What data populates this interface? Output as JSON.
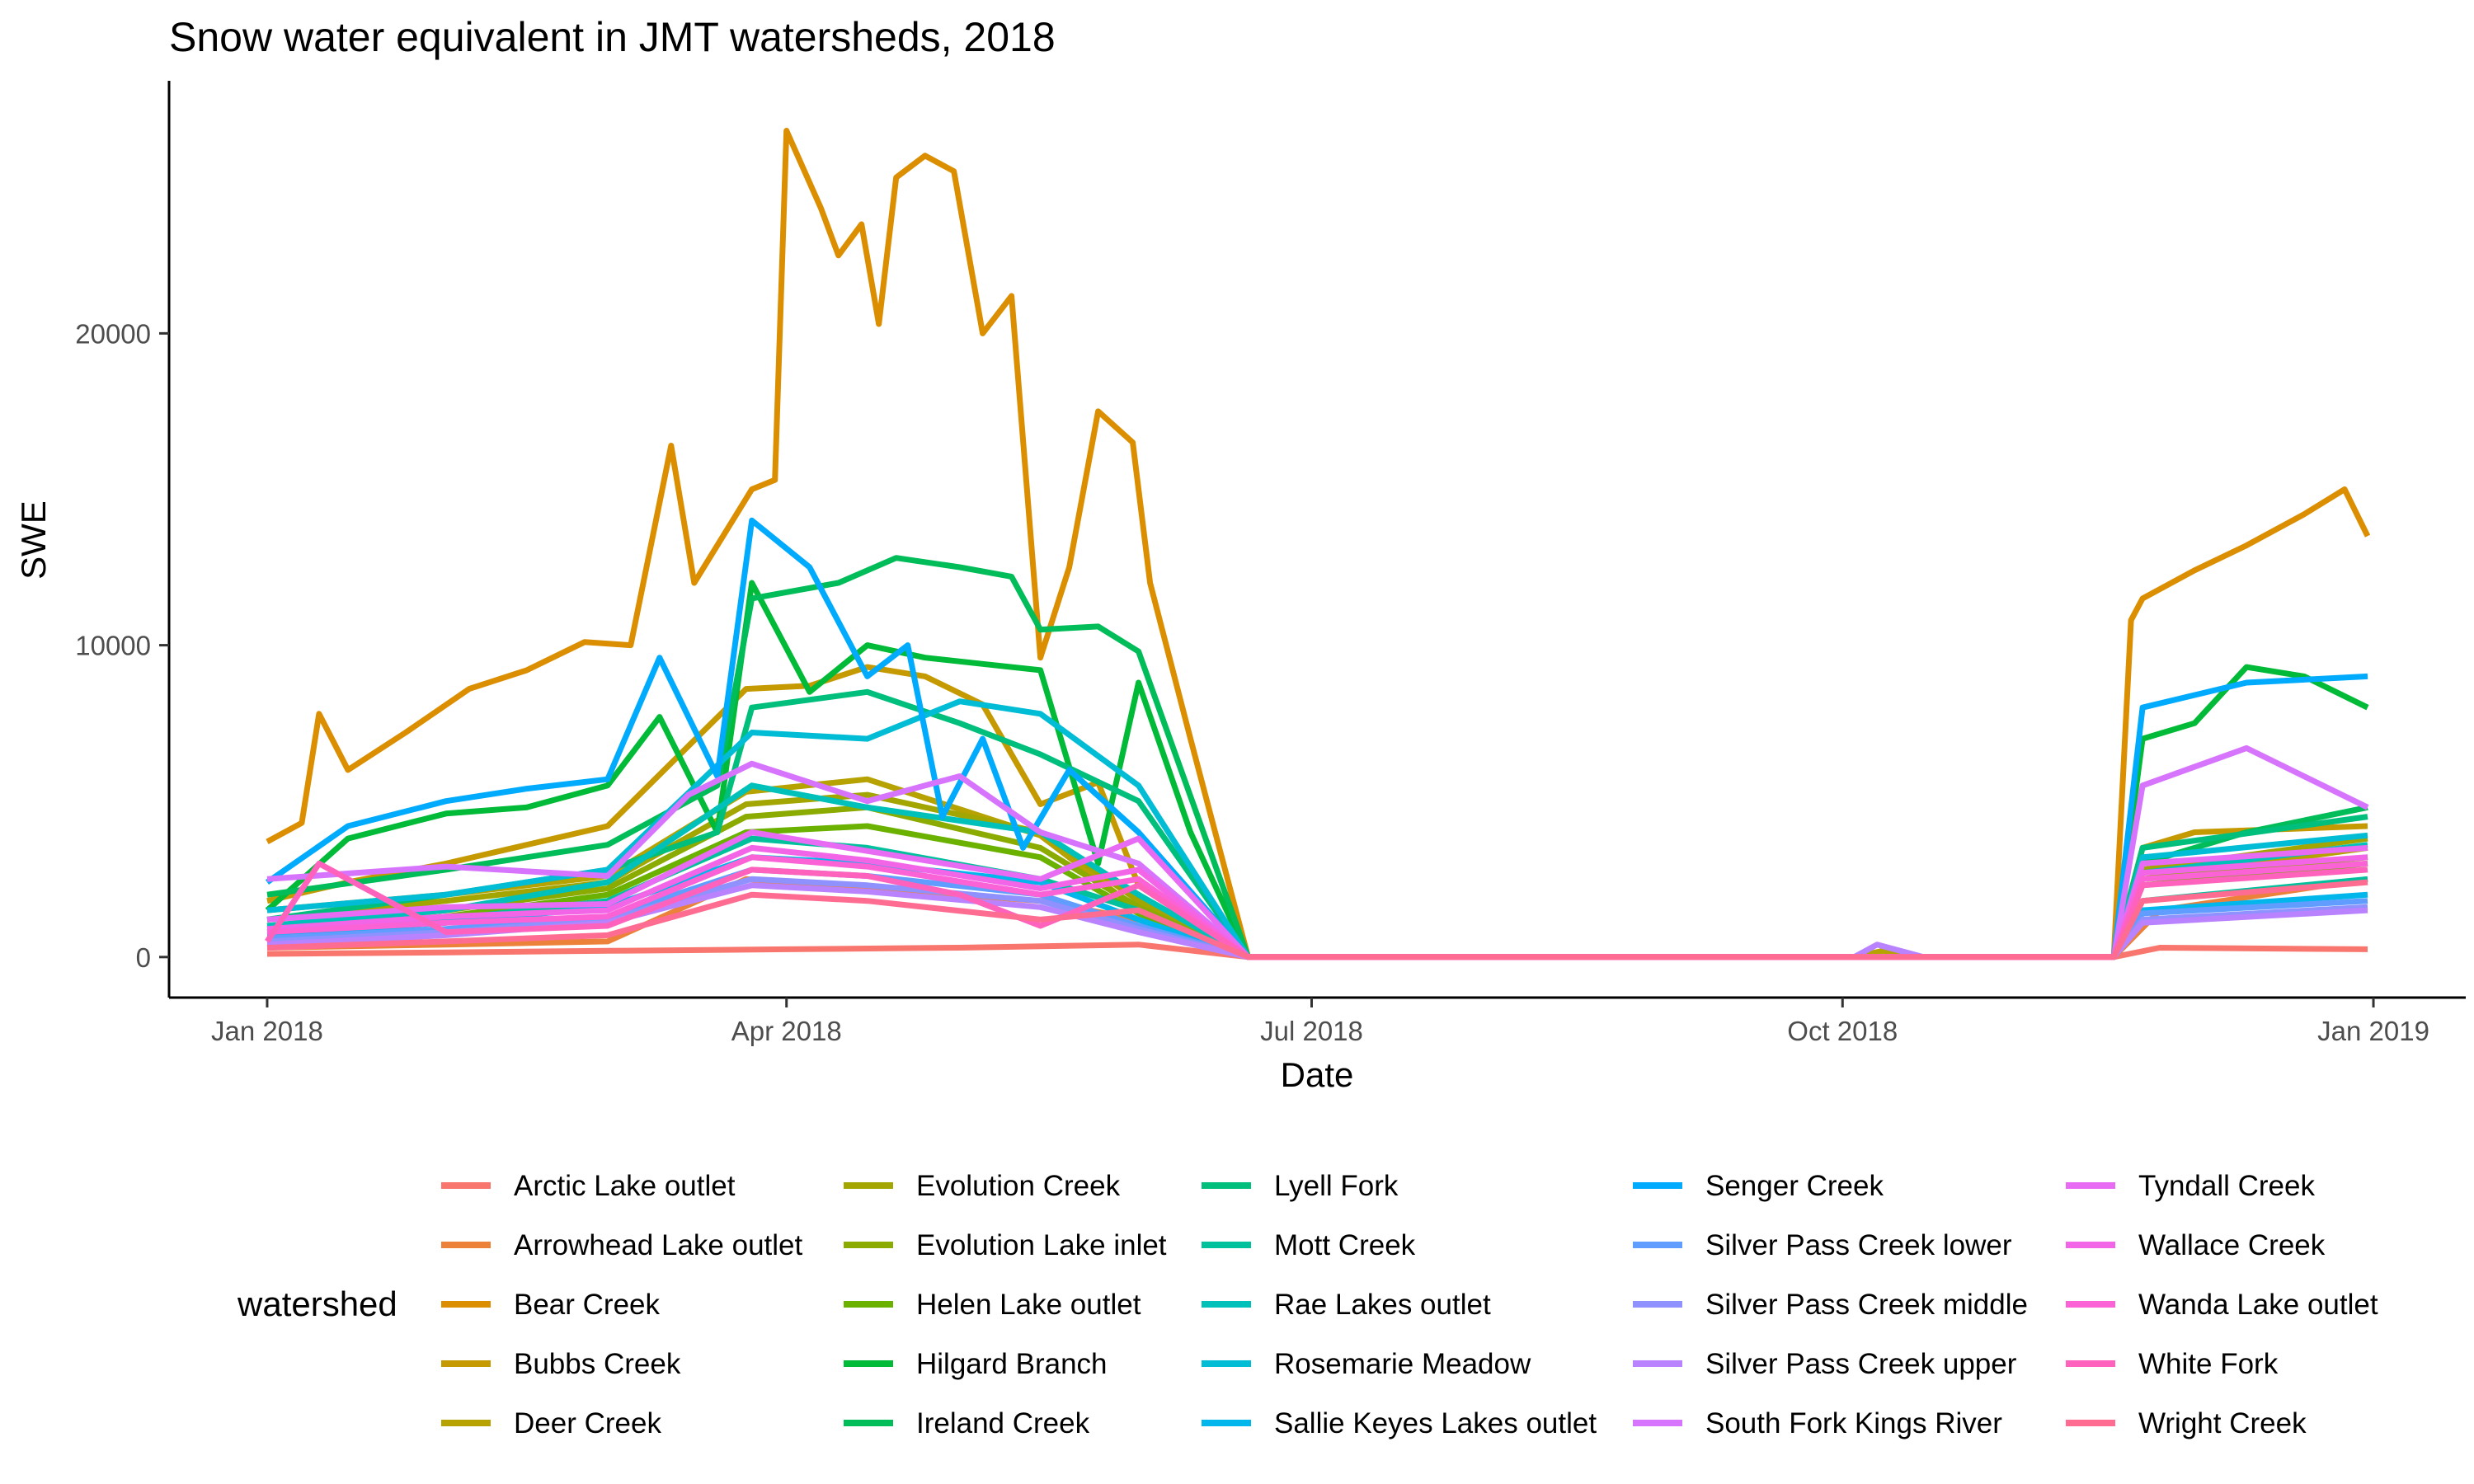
{
  "chart_data": {
    "type": "line",
    "title": "Snow water equivalent in JMT watersheds, 2018",
    "xlabel": "Date",
    "ylabel": "SWE",
    "xlim": [
      "2017-12-15",
      "2019-01-17"
    ],
    "ylim": [
      -1300,
      28100
    ],
    "x_ticks": [
      {
        "date": "2018-01-01",
        "label": "Jan 2018"
      },
      {
        "date": "2018-04-01",
        "label": "Apr 2018"
      },
      {
        "date": "2018-07-01",
        "label": "Jul 2018"
      },
      {
        "date": "2018-10-01",
        "label": "Oct 2018"
      },
      {
        "date": "2019-01-01",
        "label": "Jan 2019"
      }
    ],
    "y_ticks": [
      {
        "value": 0,
        "label": "0"
      },
      {
        "value": 10000,
        "label": "10000"
      },
      {
        "value": 20000,
        "label": "20000"
      }
    ],
    "grid": false,
    "legend": {
      "title": "watershed",
      "position": "bottom",
      "columns": 5
    },
    "series": [
      {
        "name": "Arctic Lake outlet",
        "color": "#F8766D",
        "x": [
          "2018-01-01",
          "2018-02-01",
          "2018-03-01",
          "2018-04-01",
          "2018-05-01",
          "2018-06-01",
          "2018-06-20",
          "2018-11-17",
          "2018-11-25",
          "2018-12-31"
        ],
        "values": [
          100,
          150,
          200,
          250,
          300,
          400,
          0,
          0,
          300,
          250
        ]
      },
      {
        "name": "Arrowhead Lake outlet",
        "color": "#EC8239",
        "x": [
          "2018-01-01",
          "2018-02-01",
          "2018-03-01",
          "2018-03-25",
          "2018-04-15",
          "2018-05-15",
          "2018-06-01",
          "2018-06-20",
          "2018-11-17",
          "2018-11-25",
          "2018-12-31"
        ],
        "values": [
          300,
          400,
          500,
          2500,
          2200,
          1800,
          1200,
          0,
          0,
          1500,
          2500
        ]
      },
      {
        "name": "Bear Creek",
        "color": "#DB8E00",
        "x": [
          "2018-01-01",
          "2018-01-07",
          "2018-01-10",
          "2018-01-15",
          "2018-01-25",
          "2018-02-05",
          "2018-02-15",
          "2018-02-25",
          "2018-03-05",
          "2018-03-12",
          "2018-03-16",
          "2018-03-21",
          "2018-03-26",
          "2018-03-30",
          "2018-04-01",
          "2018-04-07",
          "2018-04-10",
          "2018-04-14",
          "2018-04-17",
          "2018-04-20",
          "2018-04-25",
          "2018-04-30",
          "2018-05-05",
          "2018-05-10",
          "2018-05-15",
          "2018-05-20",
          "2018-05-25",
          "2018-05-31",
          "2018-06-03",
          "2018-06-10",
          "2018-06-20",
          "2018-11-17",
          "2018-11-20",
          "2018-11-22",
          "2018-12-01",
          "2018-12-10",
          "2018-12-20",
          "2018-12-27",
          "2018-12-31"
        ],
        "values": [
          3700,
          4300,
          7800,
          6000,
          7200,
          8600,
          9200,
          10100,
          10000,
          16400,
          12000,
          13500,
          15000,
          15300,
          26500,
          24000,
          22500,
          23500,
          20300,
          25000,
          25700,
          25200,
          20000,
          21200,
          9600,
          12500,
          17500,
          16500,
          12000,
          7000,
          0,
          0,
          10800,
          11500,
          12400,
          13200,
          14200,
          15000,
          13500
        ]
      },
      {
        "name": "Bubbs Creek",
        "color": "#C59900",
        "x": [
          "2018-01-01",
          "2018-01-15",
          "2018-02-01",
          "2018-03-01",
          "2018-03-25",
          "2018-04-05",
          "2018-04-15",
          "2018-04-25",
          "2018-05-05",
          "2018-05-15",
          "2018-05-25",
          "2018-06-01",
          "2018-06-20",
          "2018-11-17",
          "2018-11-22",
          "2018-12-01",
          "2018-12-31"
        ],
        "values": [
          1800,
          2400,
          3000,
          4200,
          8600,
          8700,
          9300,
          9000,
          8100,
          4900,
          5600,
          2300,
          0,
          0,
          3500,
          4000,
          4200
        ]
      },
      {
        "name": "Deer Creek",
        "color": "#B6A200",
        "x": [
          "2018-01-01",
          "2018-02-01",
          "2018-03-01",
          "2018-03-25",
          "2018-04-15",
          "2018-05-15",
          "2018-06-01",
          "2018-06-20",
          "2018-10-03",
          "2018-10-08",
          "2018-10-15",
          "2018-11-17",
          "2018-11-22",
          "2018-12-31"
        ],
        "values": [
          1500,
          2000,
          2600,
          5300,
          5700,
          3900,
          1500,
          0,
          0,
          200,
          0,
          0,
          2500,
          3500
        ]
      },
      {
        "name": "Evolution Creek",
        "color": "#A3A500",
        "x": [
          "2018-01-01",
          "2018-02-01",
          "2018-03-01",
          "2018-03-25",
          "2018-04-15",
          "2018-05-15",
          "2018-06-01",
          "2018-06-20",
          "2018-11-17",
          "2018-11-22",
          "2018-12-31"
        ],
        "values": [
          1200,
          1800,
          2400,
          4900,
          5200,
          4000,
          1800,
          0,
          0,
          2800,
          3800
        ]
      },
      {
        "name": "Evolution Lake inlet",
        "color": "#8BAB00",
        "x": [
          "2018-01-01",
          "2018-02-01",
          "2018-03-01",
          "2018-03-25",
          "2018-04-15",
          "2018-05-15",
          "2018-06-01",
          "2018-06-20",
          "2018-11-17",
          "2018-11-22",
          "2018-12-31"
        ],
        "values": [
          1000,
          1500,
          2200,
          4500,
          4800,
          3500,
          1600,
          0,
          0,
          2500,
          3200
        ]
      },
      {
        "name": "Helen Lake outlet",
        "color": "#6BB100",
        "x": [
          "2018-01-01",
          "2018-02-01",
          "2018-03-01",
          "2018-03-25",
          "2018-04-15",
          "2018-05-15",
          "2018-06-01",
          "2018-06-20",
          "2018-11-17",
          "2018-11-22",
          "2018-12-31"
        ],
        "values": [
          900,
          1300,
          2000,
          4000,
          4200,
          3200,
          1400,
          0,
          0,
          2300,
          3000
        ]
      },
      {
        "name": "Hilgard Branch",
        "color": "#00BA38",
        "x": [
          "2018-01-01",
          "2018-01-15",
          "2018-02-01",
          "2018-02-15",
          "2018-03-01",
          "2018-03-10",
          "2018-03-20",
          "2018-03-26",
          "2018-04-05",
          "2018-04-15",
          "2018-04-25",
          "2018-05-05",
          "2018-05-15",
          "2018-05-25",
          "2018-06-01",
          "2018-06-10",
          "2018-06-20",
          "2018-11-17",
          "2018-11-22",
          "2018-12-01",
          "2018-12-10",
          "2018-12-20",
          "2018-12-31"
        ],
        "values": [
          1500,
          3800,
          4600,
          4800,
          5500,
          7700,
          4000,
          12000,
          8500,
          10000,
          9600,
          9400,
          9200,
          3000,
          8800,
          4000,
          0,
          0,
          7000,
          7500,
          9300,
          9000,
          8000
        ]
      },
      {
        "name": "Ireland Creek",
        "color": "#00BC59",
        "x": [
          "2018-01-01",
          "2018-02-01",
          "2018-03-01",
          "2018-03-20",
          "2018-03-26",
          "2018-04-10",
          "2018-04-20",
          "2018-05-01",
          "2018-05-10",
          "2018-05-15",
          "2018-05-25",
          "2018-06-01",
          "2018-06-20",
          "2018-11-17",
          "2018-11-22",
          "2018-12-10",
          "2018-12-31"
        ],
        "values": [
          2000,
          2800,
          3600,
          5500,
          11500,
          12000,
          12800,
          12500,
          12200,
          10500,
          10600,
          9800,
          0,
          0,
          3000,
          4000,
          4800
        ]
      },
      {
        "name": "Lyell Fork",
        "color": "#00BF7D",
        "x": [
          "2018-01-01",
          "2018-02-01",
          "2018-03-01",
          "2018-03-20",
          "2018-03-26",
          "2018-04-15",
          "2018-05-01",
          "2018-05-15",
          "2018-06-01",
          "2018-06-20",
          "2018-11-17",
          "2018-11-22",
          "2018-12-31"
        ],
        "values": [
          1200,
          2000,
          2800,
          4000,
          8000,
          8500,
          7500,
          6500,
          5000,
          0,
          0,
          3500,
          4500
        ]
      },
      {
        "name": "Mott Creek",
        "color": "#00C19C",
        "x": [
          "2018-01-01",
          "2018-02-01",
          "2018-03-01",
          "2018-03-26",
          "2018-04-15",
          "2018-05-15",
          "2018-06-01",
          "2018-06-20",
          "2018-11-17",
          "2018-11-22",
          "2018-12-31"
        ],
        "values": [
          800,
          1200,
          1800,
          3800,
          3500,
          2500,
          1500,
          0,
          0,
          1800,
          2500
        ]
      },
      {
        "name": "Rae Lakes outlet",
        "color": "#00C1B9",
        "x": [
          "2018-01-01",
          "2018-02-01",
          "2018-03-01",
          "2018-03-26",
          "2018-04-15",
          "2018-05-15",
          "2018-06-01",
          "2018-06-20",
          "2018-11-17",
          "2018-11-22",
          "2018-12-31"
        ],
        "values": [
          1000,
          1500,
          2400,
          5500,
          4800,
          4000,
          2000,
          0,
          0,
          2700,
          3600
        ]
      },
      {
        "name": "Rosemarie Meadow",
        "color": "#00BCD5",
        "x": [
          "2018-01-01",
          "2018-02-01",
          "2018-03-01",
          "2018-03-26",
          "2018-04-15",
          "2018-05-01",
          "2018-05-15",
          "2018-06-01",
          "2018-06-20",
          "2018-11-17",
          "2018-11-22",
          "2018-12-31"
        ],
        "values": [
          1500,
          2000,
          2800,
          7200,
          7000,
          8200,
          7800,
          5500,
          0,
          0,
          3200,
          3900
        ]
      },
      {
        "name": "Sallie Keyes Lakes outlet",
        "color": "#00B6EB",
        "x": [
          "2018-01-01",
          "2018-02-01",
          "2018-03-01",
          "2018-03-26",
          "2018-04-15",
          "2018-05-15",
          "2018-06-01",
          "2018-06-20",
          "2018-11-17",
          "2018-11-22",
          "2018-12-31"
        ],
        "values": [
          700,
          1100,
          1600,
          3200,
          3000,
          2400,
          1200,
          0,
          0,
          1500,
          2000
        ]
      },
      {
        "name": "Senger Creek",
        "color": "#00ABFD",
        "x": [
          "2018-01-01",
          "2018-01-15",
          "2018-02-01",
          "2018-02-15",
          "2018-03-01",
          "2018-03-10",
          "2018-03-20",
          "2018-03-26",
          "2018-04-05",
          "2018-04-15",
          "2018-04-22",
          "2018-04-28",
          "2018-05-05",
          "2018-05-12",
          "2018-05-20",
          "2018-06-01",
          "2018-06-20",
          "2018-11-17",
          "2018-11-22",
          "2018-12-10",
          "2018-12-31"
        ],
        "values": [
          2400,
          4200,
          5000,
          5400,
          5700,
          9600,
          5800,
          14000,
          12500,
          9000,
          10000,
          4500,
          7000,
          3500,
          6000,
          4000,
          0,
          0,
          8000,
          8800,
          9000
        ]
      },
      {
        "name": "Silver Pass Creek lower",
        "color": "#619CFF",
        "x": [
          "2018-01-01",
          "2018-02-01",
          "2018-03-01",
          "2018-03-26",
          "2018-04-15",
          "2018-05-15",
          "2018-06-01",
          "2018-06-20",
          "2018-11-17",
          "2018-11-22",
          "2018-12-31"
        ],
        "values": [
          600,
          900,
          1300,
          2800,
          2600,
          2000,
          1000,
          0,
          0,
          1400,
          1800
        ]
      },
      {
        "name": "Silver Pass Creek middle",
        "color": "#8F91FF",
        "x": [
          "2018-01-01",
          "2018-02-01",
          "2018-03-01",
          "2018-03-26",
          "2018-04-15",
          "2018-05-15",
          "2018-06-01",
          "2018-06-20",
          "2018-11-17",
          "2018-11-22",
          "2018-12-31"
        ],
        "values": [
          500,
          800,
          1200,
          2500,
          2300,
          1800,
          900,
          0,
          0,
          1200,
          1600
        ]
      },
      {
        "name": "Silver Pass Creek upper",
        "color": "#B983FF",
        "x": [
          "2018-01-01",
          "2018-02-01",
          "2018-03-01",
          "2018-03-26",
          "2018-04-15",
          "2018-05-15",
          "2018-06-01",
          "2018-06-20",
          "2018-10-03",
          "2018-10-07",
          "2018-10-15",
          "2018-11-17",
          "2018-11-22",
          "2018-12-31"
        ],
        "values": [
          400,
          700,
          1100,
          2300,
          2100,
          1600,
          800,
          0,
          0,
          400,
          0,
          0,
          1100,
          1500
        ]
      },
      {
        "name": "South Fork Kings River",
        "color": "#D774FD",
        "x": [
          "2018-01-01",
          "2018-02-01",
          "2018-03-01",
          "2018-03-15",
          "2018-03-26",
          "2018-04-15",
          "2018-05-01",
          "2018-05-15",
          "2018-06-01",
          "2018-06-20",
          "2018-11-17",
          "2018-11-22",
          "2018-12-10",
          "2018-12-31"
        ],
        "values": [
          2500,
          2900,
          2600,
          5200,
          6200,
          5000,
          5800,
          4000,
          3000,
          0,
          0,
          5500,
          6700,
          4800
        ]
      },
      {
        "name": "Tyndall Creek",
        "color": "#E76BF3",
        "x": [
          "2018-01-01",
          "2018-02-01",
          "2018-03-01",
          "2018-03-26",
          "2018-04-15",
          "2018-05-15",
          "2018-06-01",
          "2018-06-20",
          "2018-11-17",
          "2018-11-22",
          "2018-12-31"
        ],
        "values": [
          1200,
          1600,
          1700,
          4000,
          3400,
          2500,
          3800,
          0,
          0,
          3000,
          3500
        ]
      },
      {
        "name": "Wallace Creek",
        "color": "#F265E7",
        "x": [
          "2018-01-01",
          "2018-02-01",
          "2018-03-01",
          "2018-03-26",
          "2018-04-15",
          "2018-05-15",
          "2018-06-01",
          "2018-06-20",
          "2018-11-17",
          "2018-11-22",
          "2018-12-31"
        ],
        "values": [
          900,
          1300,
          1500,
          3500,
          3100,
          2200,
          2800,
          0,
          0,
          2700,
          3200
        ]
      },
      {
        "name": "Wanda Lake outlet",
        "color": "#FA62D5",
        "x": [
          "2018-01-01",
          "2018-02-01",
          "2018-03-01",
          "2018-03-26",
          "2018-04-15",
          "2018-05-15",
          "2018-06-01",
          "2018-06-20",
          "2018-11-17",
          "2018-11-22",
          "2018-12-31"
        ],
        "values": [
          800,
          1100,
          1300,
          3200,
          2900,
          2000,
          2500,
          0,
          0,
          2500,
          3000
        ]
      },
      {
        "name": "White Fork",
        "color": "#FF62BC",
        "x": [
          "2018-01-01",
          "2018-01-10",
          "2018-02-01",
          "2018-03-01",
          "2018-03-26",
          "2018-04-15",
          "2018-05-01",
          "2018-05-15",
          "2018-06-01",
          "2018-06-20",
          "2018-11-17",
          "2018-11-22",
          "2018-12-31"
        ],
        "values": [
          500,
          3000,
          800,
          1000,
          2800,
          2600,
          2000,
          1000,
          2300,
          0,
          0,
          2300,
          2800
        ]
      },
      {
        "name": "Wright Creek",
        "color": "#FF6C91",
        "x": [
          "2018-01-01",
          "2018-02-01",
          "2018-03-01",
          "2018-03-26",
          "2018-04-15",
          "2018-05-15",
          "2018-06-01",
          "2018-06-20",
          "2018-11-17",
          "2018-11-22",
          "2018-12-31"
        ],
        "values": [
          300,
          500,
          700,
          2000,
          1800,
          1200,
          1500,
          0,
          0,
          1800,
          2400
        ]
      }
    ]
  }
}
